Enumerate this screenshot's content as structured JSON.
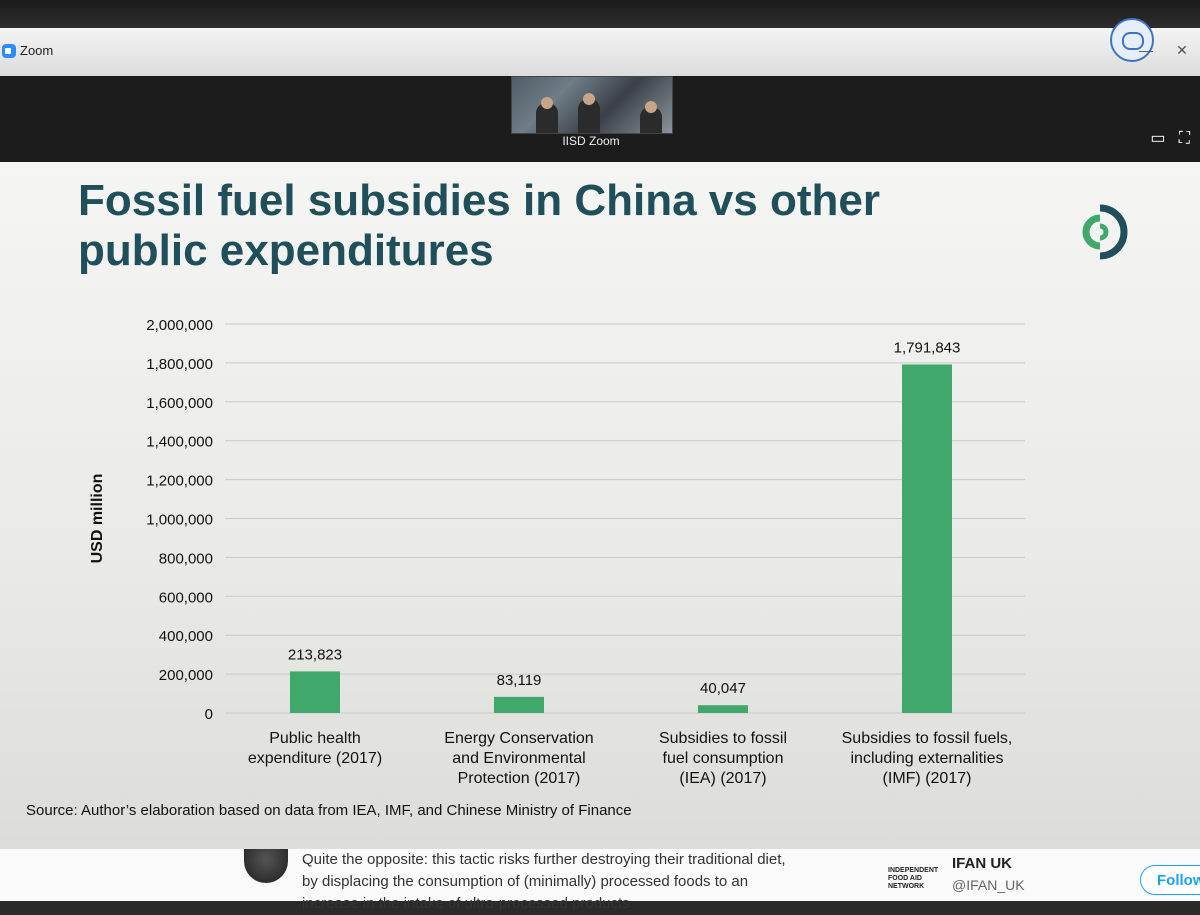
{
  "window": {
    "app_title": "Zoom",
    "participant_name": "IISD Zoom"
  },
  "slide": {
    "title_line1": "Fossil fuel subsidies in China vs other",
    "title_line2": "public expenditures",
    "source": "Source: Author’s elaboration based on data from IEA, IMF, and Chinese Ministry of Finance",
    "bar_color": "#3fa86a",
    "title_color": "#1f4f5a"
  },
  "chart_data": {
    "type": "bar",
    "categories": [
      [
        "Public health",
        "expenditure (2017)"
      ],
      [
        "Energy Conservation",
        "and Environmental",
        "Protection (2017)"
      ],
      [
        "Subsidies to fossil",
        "fuel consumption",
        "(IEA) (2017)"
      ],
      [
        "Subsidies to fossil fuels,",
        "including externalities",
        "(IMF) (2017)"
      ]
    ],
    "values": [
      213823,
      83119,
      40047,
      1791843
    ],
    "data_labels": [
      "213,823",
      "83,119",
      "40,047",
      "1,791,843"
    ],
    "ylabel": "USD million",
    "ylim": [
      0,
      2000000
    ],
    "yticks": [
      "0",
      "200,000",
      "400,000",
      "600,000",
      "800,000",
      "1,000,000",
      "1,200,000",
      "1,400,000",
      "1,600,000",
      "1,800,000",
      "2,000,000"
    ],
    "grid": true
  },
  "tweet": {
    "text_line1": "Quite the opposite: this tactic risks further destroying their traditional diet,",
    "text_line2": "by displacing the consumption of (minimally) processed foods to an",
    "text_line3": "increase in the intake of ultra-processed products",
    "org_logo_text": "INDEPENDENT FOOD AID NETWORK",
    "org_name": "IFAN UK",
    "handle": "@IFAN_UK",
    "follow_label": "Follow"
  }
}
